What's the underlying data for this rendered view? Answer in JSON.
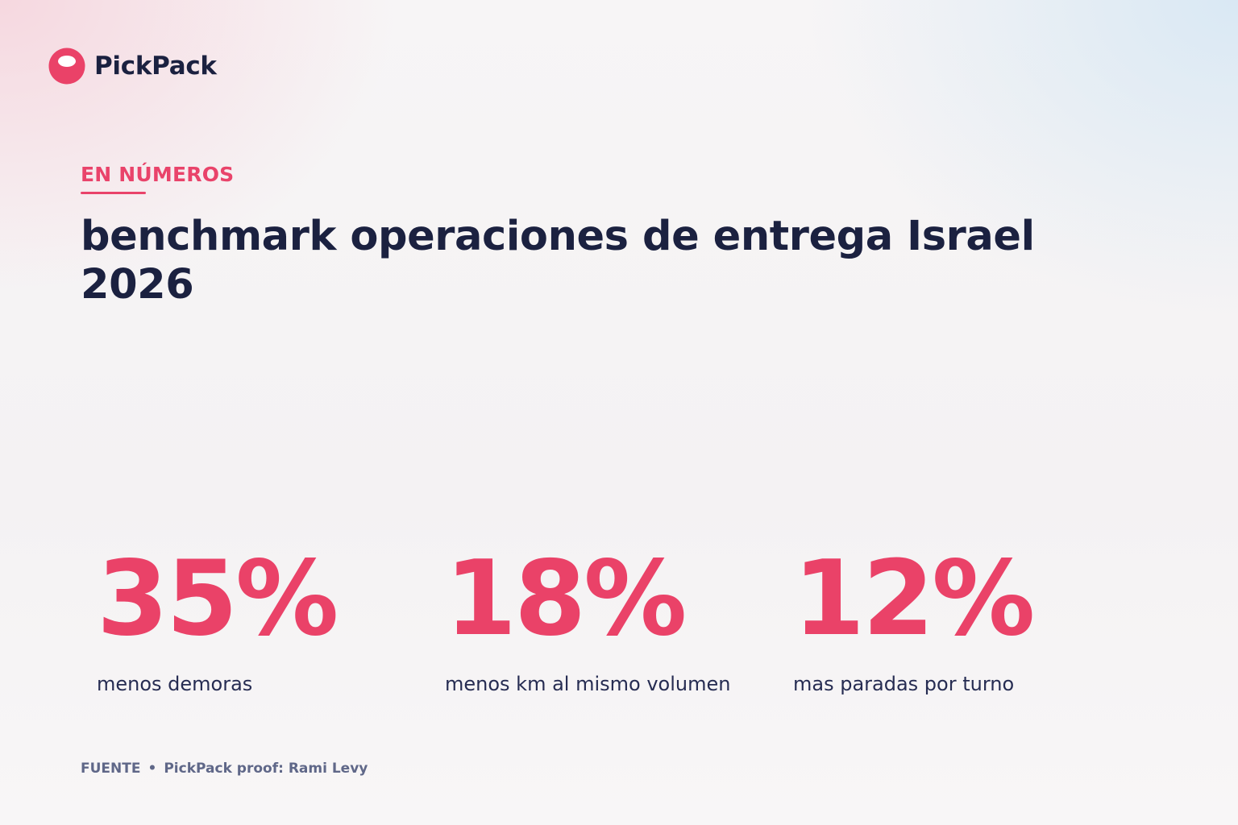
{
  "brand": {
    "name": "PickPack",
    "logo_icon": "pickpack-logo-icon",
    "accent_color": "#e9436a",
    "text_color": "#1b2140"
  },
  "header": {
    "eyebrow": "EN NÚMEROS",
    "title": "benchmark operaciones de entrega Israel 2026"
  },
  "stats": [
    {
      "value": "35%",
      "label": "menos demoras"
    },
    {
      "value": "18%",
      "label": "menos km al mismo volumen"
    },
    {
      "value": "12%",
      "label": "mas paradas por turno"
    }
  ],
  "source": {
    "label": "FUENTE",
    "separator": "•",
    "text": "PickPack proof: Rami Levy"
  }
}
